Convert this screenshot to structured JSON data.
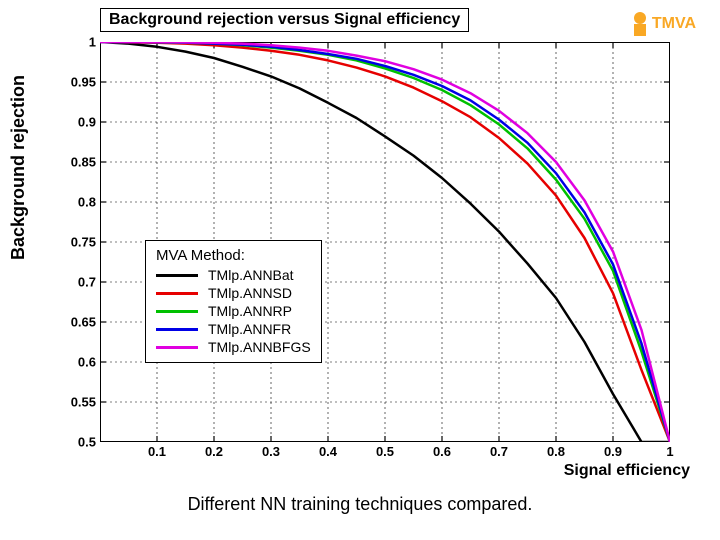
{
  "chart": {
    "type": "line",
    "title": "Background rejection versus Signal efficiency",
    "xlabel": "Signal efficiency",
    "ylabel": "Background rejection",
    "title_fontsize": 16,
    "label_fontsize": 18,
    "tick_fontsize": 13,
    "background_color": "#ffffff",
    "axis_color": "#000000",
    "grid_color": "#000000",
    "grid_dash": "2,3",
    "grid_width": 0.6,
    "axis_width": 2,
    "line_width": 2.5,
    "xlim": [
      0,
      1
    ],
    "ylim": [
      0.5,
      1
    ],
    "xticks": [
      0.1,
      0.2,
      0.3,
      0.4,
      0.5,
      0.6,
      0.7,
      0.8,
      0.9,
      1
    ],
    "yticks": [
      0.5,
      0.55,
      0.6,
      0.65,
      0.7,
      0.75,
      0.8,
      0.85,
      0.9,
      0.95,
      1
    ],
    "legend_title": "MVA Method:",
    "legend_position": "lower-left-inside",
    "series": [
      {
        "name": "TMlp.ANNBat",
        "color": "#000000",
        "x": [
          0.0,
          0.05,
          0.1,
          0.15,
          0.2,
          0.25,
          0.3,
          0.35,
          0.4,
          0.45,
          0.5,
          0.55,
          0.6,
          0.65,
          0.7,
          0.75,
          0.8,
          0.85,
          0.9,
          0.95,
          1.0
        ],
        "y": [
          1.0,
          0.998,
          0.994,
          0.988,
          0.98,
          0.969,
          0.957,
          0.942,
          0.924,
          0.905,
          0.882,
          0.858,
          0.83,
          0.798,
          0.763,
          0.723,
          0.68,
          0.625,
          0.56,
          0.5,
          0.5
        ]
      },
      {
        "name": "TMlp.ANNSD",
        "color": "#e60000",
        "x": [
          0.0,
          0.05,
          0.1,
          0.15,
          0.2,
          0.25,
          0.3,
          0.35,
          0.4,
          0.45,
          0.5,
          0.55,
          0.6,
          0.65,
          0.7,
          0.75,
          0.8,
          0.85,
          0.9,
          0.95,
          1.0
        ],
        "y": [
          1.0,
          0.9995,
          0.999,
          0.998,
          0.996,
          0.993,
          0.989,
          0.984,
          0.977,
          0.968,
          0.957,
          0.943,
          0.926,
          0.906,
          0.88,
          0.848,
          0.808,
          0.755,
          0.686,
          0.59,
          0.5
        ]
      },
      {
        "name": "TMlp.ANNRP",
        "color": "#00c000",
        "x": [
          0.0,
          0.05,
          0.1,
          0.15,
          0.2,
          0.25,
          0.3,
          0.35,
          0.4,
          0.45,
          0.5,
          0.55,
          0.6,
          0.65,
          0.7,
          0.75,
          0.8,
          0.85,
          0.9,
          0.95,
          1.0
        ],
        "y": [
          1.0,
          0.9998,
          0.9995,
          0.999,
          0.998,
          0.996,
          0.993,
          0.989,
          0.984,
          0.977,
          0.967,
          0.955,
          0.94,
          0.921,
          0.897,
          0.867,
          0.828,
          0.779,
          0.714,
          0.613,
          0.5
        ]
      },
      {
        "name": "TMlp.ANNFR",
        "color": "#0000e6",
        "x": [
          0.0,
          0.05,
          0.1,
          0.15,
          0.2,
          0.25,
          0.3,
          0.35,
          0.4,
          0.45,
          0.5,
          0.55,
          0.6,
          0.65,
          0.7,
          0.75,
          0.8,
          0.85,
          0.9,
          0.95,
          1.0
        ],
        "y": [
          1.0,
          0.9998,
          0.9996,
          0.9992,
          0.998,
          0.9965,
          0.994,
          0.99,
          0.985,
          0.979,
          0.97,
          0.959,
          0.945,
          0.927,
          0.903,
          0.874,
          0.836,
          0.787,
          0.722,
          0.623,
          0.5
        ]
      },
      {
        "name": "TMlp.ANNBFGS",
        "color": "#e000e0",
        "x": [
          0.0,
          0.05,
          0.1,
          0.15,
          0.2,
          0.25,
          0.3,
          0.35,
          0.4,
          0.45,
          0.5,
          0.55,
          0.6,
          0.65,
          0.7,
          0.75,
          0.8,
          0.85,
          0.9,
          0.95,
          1.0
        ],
        "y": [
          1.0,
          0.9999,
          0.9998,
          0.9995,
          0.999,
          0.998,
          0.996,
          0.993,
          0.989,
          0.983,
          0.976,
          0.966,
          0.953,
          0.936,
          0.914,
          0.886,
          0.85,
          0.802,
          0.738,
          0.64,
          0.5
        ]
      }
    ]
  },
  "caption": "Different NN training techniques compared.",
  "logo": {
    "text": "TMVA",
    "color": "#f9a825"
  }
}
